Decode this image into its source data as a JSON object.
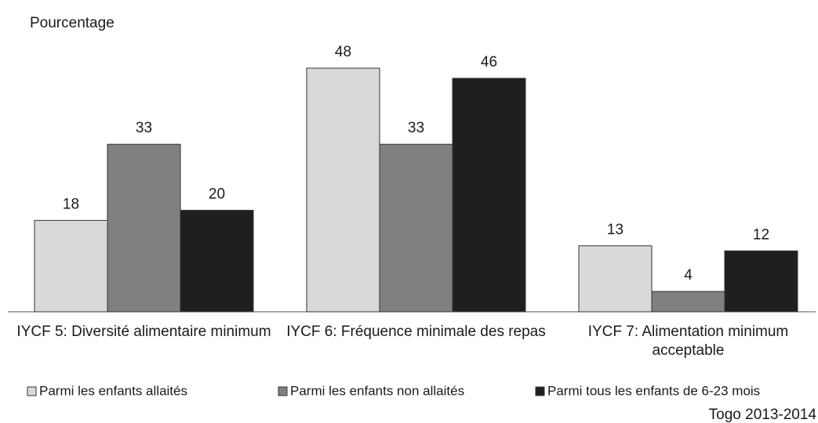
{
  "chart_data": {
    "type": "bar",
    "y_label": "Pourcentage",
    "categories": [
      "IYCF 5: Diversité alimentaire minimum",
      "IYCF 6: Fréquence minimale des repas",
      "IYCF 7: Alimentation minimum acceptable"
    ],
    "series": [
      {
        "name": "Parmi les enfants allaités",
        "color": "#d9d9d9",
        "values": [
          18,
          48,
          13
        ]
      },
      {
        "name": "Parmi les enfants non allaités",
        "color": "#808080",
        "values": [
          33,
          33,
          4
        ]
      },
      {
        "name": "Parmi tous les enfants de 6-23 mois",
        "color": "#1f1f1f",
        "values": [
          20,
          46,
          12
        ]
      }
    ],
    "source": "Togo 2013-2014"
  }
}
